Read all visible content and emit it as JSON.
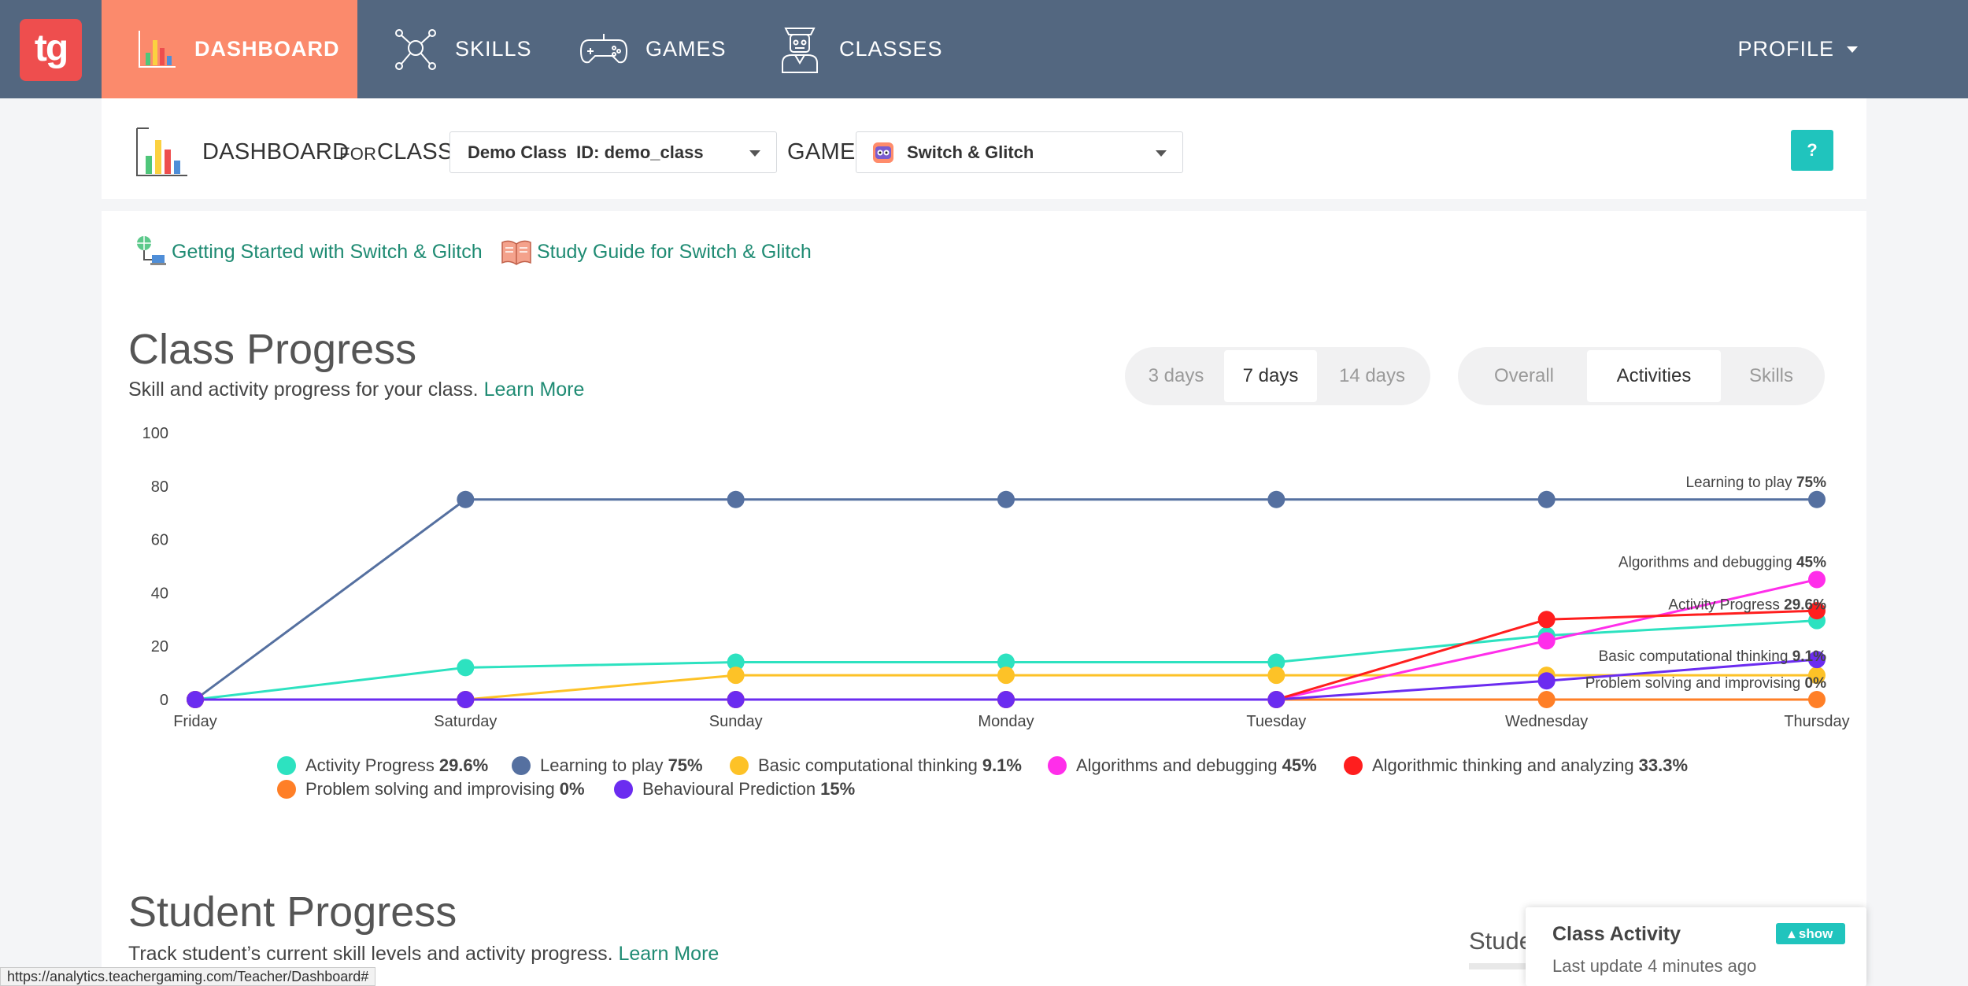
{
  "app": {
    "logo_text": "tg"
  },
  "nav": {
    "items": [
      {
        "label": "DASHBOARD",
        "icon": "bar-chart-icon",
        "active": true
      },
      {
        "label": "SKILLS",
        "icon": "network-icon",
        "active": false
      },
      {
        "label": "GAMES",
        "icon": "gamepad-icon",
        "active": false
      },
      {
        "label": "CLASSES",
        "icon": "teacher-icon",
        "active": false
      }
    ],
    "profile_label": "PROFILE"
  },
  "toolbar": {
    "dashboard_label": "DASHBOARD",
    "for_label": "FOR",
    "class_label": "CLASS",
    "class_select": "Demo Class  ID: demo_class",
    "game_label": "GAME",
    "game_select": "Switch & Glitch",
    "help_label": "?"
  },
  "links": {
    "getting_started": "Getting Started with Switch & Glitch",
    "study_guide": "Study Guide for Switch & Glitch"
  },
  "class_progress": {
    "title": "Class Progress",
    "subtitle": "Skill and activity progress for your class.",
    "learn_more": "Learn More",
    "range_options": [
      "3 days",
      "7 days",
      "14 days"
    ],
    "range_selected": "7 days",
    "view_options": [
      "Overall",
      "Activities",
      "Skills"
    ],
    "view_selected": "Activities"
  },
  "chart_data": {
    "type": "line",
    "x": [
      "Friday",
      "Saturday",
      "Sunday",
      "Monday",
      "Tuesday",
      "Wednesday",
      "Thursday"
    ],
    "ylim": [
      0,
      100
    ],
    "yticks": [
      0,
      20,
      40,
      60,
      80,
      100
    ],
    "grid": false,
    "legend": "bottom",
    "series": [
      {
        "name": "Activity Progress",
        "value_label": "29.6%",
        "color": "#2de2c0",
        "values": [
          0,
          12,
          14,
          14,
          14,
          24,
          29.6
        ]
      },
      {
        "name": "Learning to play",
        "value_label": "75%",
        "color": "#5570a0",
        "values": [
          0,
          75,
          75,
          75,
          75,
          75,
          75
        ]
      },
      {
        "name": "Basic computational thinking",
        "value_label": "9.1%",
        "color": "#fdc227",
        "values": [
          0,
          0,
          9.1,
          9.1,
          9.1,
          9.1,
          9.1
        ]
      },
      {
        "name": "Algorithms and debugging",
        "value_label": "45%",
        "color": "#ff2eea",
        "values": [
          0,
          0,
          0,
          0,
          0,
          22,
          45
        ]
      },
      {
        "name": "Algorithmic thinking and analyzing",
        "value_label": "33.3%",
        "color": "#ff1e1e",
        "values": [
          0,
          0,
          0,
          0,
          0,
          30,
          33.3
        ]
      },
      {
        "name": "Problem solving and improvising",
        "value_label": "0%",
        "color": "#ff7f27",
        "values": [
          0,
          0,
          0,
          0,
          0,
          0,
          0
        ]
      },
      {
        "name": "Behavioural Prediction",
        "value_label": "15%",
        "color": "#6b2cf0",
        "values": [
          0,
          0,
          0,
          0,
          0,
          7,
          15
        ]
      }
    ],
    "end_labels": [
      {
        "series": "Learning to play",
        "text": "Learning to play",
        "value": "75%"
      },
      {
        "series": "Algorithms and debugging",
        "text": "Algorithms and debugging",
        "value": "45%"
      },
      {
        "series": "Activity Progress",
        "text": "Activity Progress",
        "value": "29.6%"
      },
      {
        "series": "Basic computational thinking",
        "text": "Basic computational thinking",
        "value": "9.1%"
      },
      {
        "series": "Problem solving and improvising",
        "text": "Problem solving and improvising",
        "value": "0%"
      }
    ]
  },
  "student_progress": {
    "title": "Student Progress",
    "subtitle": "Track student’s current skill levels and activity progress.",
    "learn_more": "Learn More",
    "partial_label": "Stude"
  },
  "popup": {
    "title": "Class Activity",
    "subtitle": "Last update 4 minutes ago",
    "button": "show"
  },
  "statusbar": {
    "url": "https://analytics.teachergaming.com/Teacher/Dashboard#"
  }
}
